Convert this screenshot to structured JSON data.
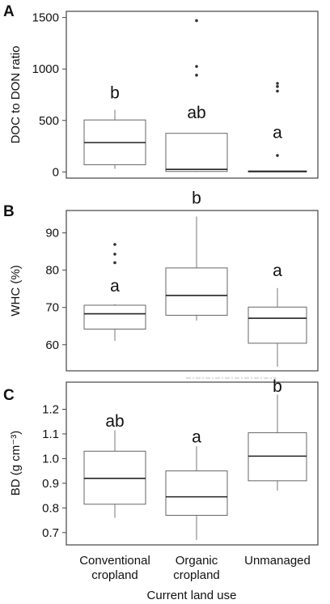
{
  "x_axis": {
    "categories": [
      "Conventional\ncropland",
      "Organic\ncropland",
      "Unmanaged"
    ],
    "title": "Current land use"
  },
  "chart_data": [
    {
      "type": "box",
      "panel": "A",
      "ylabel": "DOC to DON ratio",
      "ylim": [
        -60,
        1560
      ],
      "yticks": [
        0,
        500,
        1000,
        1500
      ],
      "categories": [
        "Conventional cropland",
        "Organic cropland",
        "Unmanaged"
      ],
      "boxes": [
        {
          "q1": 70,
          "median": 285,
          "q3": 505,
          "whisker_low": 30,
          "whisker_high": 605,
          "outliers": [],
          "letter": "b",
          "letter_y": 715
        },
        {
          "q1": 5,
          "median": 25,
          "q3": 375,
          "whisker_low": 0,
          "whisker_high": 375,
          "outliers": [
            940,
            1025,
            1470
          ],
          "letter": "ab",
          "letter_y": 520
        },
        {
          "q1": 0,
          "median": 5,
          "q3": 10,
          "whisker_low": 0,
          "whisker_high": 10,
          "outliers": [
            160,
            785,
            830,
            860
          ],
          "letter": "a",
          "letter_y": 330
        }
      ]
    },
    {
      "type": "box",
      "panel": "B",
      "ylabel": "WHC (%)",
      "ylim": [
        53,
        96
      ],
      "yticks": [
        60,
        70,
        80,
        90
      ],
      "categories": [
        "Conventional cropland",
        "Organic cropland",
        "Unmanaged"
      ],
      "boxes": [
        {
          "q1": 64.2,
          "median": 68.3,
          "q3": 70.6,
          "whisker_low": 61.0,
          "whisker_high": 70.9,
          "outliers": [
            82.0,
            84.3,
            86.9
          ],
          "letter": "a",
          "letter_y": 74.3
        },
        {
          "q1": 67.9,
          "median": 73.2,
          "q3": 80.6,
          "whisker_low": 66.5,
          "whisker_high": 94.4,
          "outliers": [],
          "letter": "b",
          "letter_y": 97.8
        },
        {
          "q1": 60.4,
          "median": 67.1,
          "q3": 70.1,
          "whisker_low": 54.1,
          "whisker_high": 75.2,
          "outliers": [],
          "letter": "a",
          "letter_y": 78.4
        }
      ]
    },
    {
      "type": "box",
      "panel": "C",
      "ylabel": "BD (g cm⁻³)",
      "ylim": [
        0.65,
        1.31
      ],
      "yticks": [
        0.7,
        0.8,
        0.9,
        1.0,
        1.1,
        1.2
      ],
      "categories": [
        "Conventional cropland",
        "Organic cropland",
        "Unmanaged"
      ],
      "boxes": [
        {
          "q1": 0.815,
          "median": 0.92,
          "q3": 1.03,
          "whisker_low": 0.76,
          "whisker_high": 1.115,
          "outliers": [],
          "letter": "ab",
          "letter_y": 1.13
        },
        {
          "q1": 0.77,
          "median": 0.845,
          "q3": 0.95,
          "whisker_low": 0.67,
          "whisker_high": 1.05,
          "outliers": [],
          "letter": "a",
          "letter_y": 1.065
        },
        {
          "q1": 0.91,
          "median": 1.01,
          "q3": 1.105,
          "whisker_low": 0.87,
          "whisker_high": 1.26,
          "outliers": [],
          "letter": "b",
          "letter_y": 1.27
        }
      ]
    }
  ]
}
